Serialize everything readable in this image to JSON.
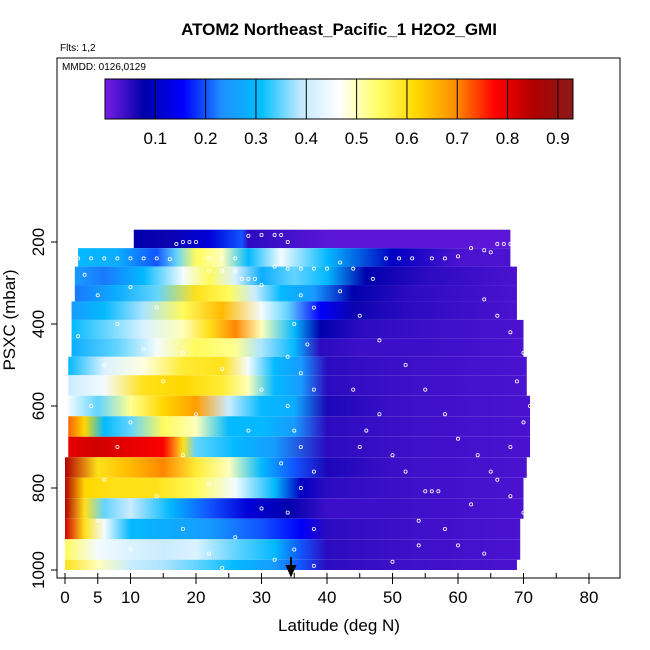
{
  "chart_data": {
    "type": "heatmap",
    "title": "ATOM2 Northeast_Pacific_1 H2O2_GMI",
    "flights_note": "Flts: 1,2",
    "date_note": "MMDD: 0126,0129",
    "xlabel": "Latitude (deg N)",
    "ylabel": "PSXC (mbar)",
    "xlim": [
      0,
      85
    ],
    "ylim": [
      1000,
      100
    ],
    "x_ticks": [
      0,
      5,
      10,
      20,
      30,
      40,
      50,
      60,
      70,
      80
    ],
    "y_ticks": [
      200,
      400,
      600,
      800,
      1000
    ],
    "y_tick_labels": [
      "200",
      "400",
      "600",
      "800",
      "1000"
    ],
    "colorbar": {
      "range": [
        0,
        0.93
      ],
      "ticks": [
        0.1,
        0.2,
        0.3,
        0.4,
        0.5,
        0.6,
        0.7,
        0.8,
        0.9
      ],
      "colors": [
        "#7a1ee6",
        "#0000aa",
        "#0000ff",
        "#1e90ff",
        "#00bfff",
        "#c0e8ff",
        "#ffffff",
        "#ffff66",
        "#ffd700",
        "#ff8c00",
        "#ff0000",
        "#b00000",
        "#8b1a1a"
      ]
    },
    "marker_latitude": 34.5,
    "bands": [
      {
        "p_top": 170,
        "p_bot": 215,
        "lat_min": 10.5,
        "lat_max": 68.0,
        "lats": [
          10.5,
          16,
          22,
          27,
          28,
          40,
          50,
          68
        ],
        "values": [
          0.08,
          0.07,
          0.12,
          0.2,
          0.05,
          0.02,
          0.02,
          0.02
        ]
      },
      {
        "p_top": 215,
        "p_bot": 260,
        "lat_min": 2.0,
        "lat_max": 68.0,
        "lats": [
          2,
          8,
          14,
          17,
          20,
          24,
          28,
          33,
          40,
          50,
          60,
          68
        ],
        "values": [
          0.3,
          0.28,
          0.2,
          0.35,
          0.55,
          0.5,
          0.3,
          0.45,
          0.3,
          0.1,
          0.03,
          0.03
        ]
      },
      {
        "p_top": 260,
        "p_bot": 305,
        "lat_min": 1.5,
        "lat_max": 69.0,
        "lats": [
          1.5,
          6,
          12,
          18,
          22,
          26,
          30,
          35,
          40,
          46,
          55,
          69
        ],
        "values": [
          0.25,
          0.22,
          0.3,
          0.45,
          0.55,
          0.42,
          0.28,
          0.35,
          0.3,
          0.08,
          0.05,
          0.03
        ]
      },
      {
        "p_top": 305,
        "p_bot": 345,
        "lat_min": 1.5,
        "lat_max": 69.0,
        "lats": [
          1.5,
          8,
          14,
          20,
          25,
          29,
          33,
          38,
          44,
          52,
          69
        ],
        "values": [
          0.22,
          0.28,
          0.35,
          0.6,
          0.55,
          0.4,
          0.3,
          0.25,
          0.08,
          0.05,
          0.03
        ]
      },
      {
        "p_top": 345,
        "p_bot": 390,
        "lat_min": 1.0,
        "lat_max": 69.0,
        "lats": [
          1,
          6,
          12,
          18,
          24,
          30,
          34,
          39,
          44,
          52,
          69
        ],
        "values": [
          0.25,
          0.3,
          0.38,
          0.55,
          0.65,
          0.45,
          0.35,
          0.15,
          0.07,
          0.05,
          0.03
        ]
      },
      {
        "p_top": 390,
        "p_bot": 435,
        "lat_min": 1.0,
        "lat_max": 70.0,
        "lats": [
          1,
          6,
          12,
          18,
          22,
          26,
          30,
          35,
          39,
          45,
          55,
          70
        ],
        "values": [
          0.3,
          0.35,
          0.42,
          0.5,
          0.6,
          0.7,
          0.5,
          0.3,
          0.08,
          0.05,
          0.04,
          0.03
        ]
      },
      {
        "p_top": 435,
        "p_bot": 480,
        "lat_min": 1.0,
        "lat_max": 70.0,
        "lats": [
          1,
          8,
          14,
          20,
          26,
          30,
          35,
          39,
          45,
          55,
          70
        ],
        "values": [
          0.28,
          0.35,
          0.45,
          0.55,
          0.52,
          0.38,
          0.3,
          0.05,
          0.04,
          0.04,
          0.03
        ]
      },
      {
        "p_top": 480,
        "p_bot": 525,
        "lat_min": 0.5,
        "lat_max": 70.5,
        "lats": [
          0.5,
          6,
          12,
          18,
          24,
          28,
          32,
          36,
          40,
          50,
          70.5
        ],
        "values": [
          0.3,
          0.42,
          0.48,
          0.58,
          0.6,
          0.45,
          0.3,
          0.25,
          0.05,
          0.04,
          0.03
        ]
      },
      {
        "p_top": 525,
        "p_bot": 575,
        "lat_min": 0.5,
        "lat_max": 70.5,
        "lats": [
          0.5,
          6,
          12,
          18,
          24,
          28,
          32,
          36,
          40,
          50,
          70.5
        ],
        "values": [
          0.4,
          0.45,
          0.6,
          0.62,
          0.58,
          0.5,
          0.3,
          0.25,
          0.05,
          0.04,
          0.03
        ]
      },
      {
        "p_top": 575,
        "p_bot": 625,
        "lat_min": 0.5,
        "lat_max": 71.0,
        "lats": [
          0.5,
          5,
          10,
          15,
          20,
          25,
          30,
          35,
          40,
          50,
          71
        ],
        "values": [
          0.45,
          0.35,
          0.52,
          0.62,
          0.68,
          0.4,
          0.3,
          0.28,
          0.06,
          0.04,
          0.03
        ]
      },
      {
        "p_top": 625,
        "p_bot": 675,
        "lat_min": 0.5,
        "lat_max": 71.0,
        "lats": [
          0.5,
          3,
          6,
          10,
          15,
          20,
          25,
          30,
          35,
          40,
          50,
          71
        ],
        "values": [
          0.72,
          0.62,
          0.3,
          0.35,
          0.55,
          0.5,
          0.3,
          0.3,
          0.25,
          0.05,
          0.04,
          0.03
        ]
      },
      {
        "p_top": 675,
        "p_bot": 725,
        "lat_min": 0.5,
        "lat_max": 71.0,
        "lats": [
          0.5,
          5,
          10,
          15,
          18,
          20,
          26,
          32,
          40,
          50,
          71
        ],
        "values": [
          0.8,
          0.82,
          0.8,
          0.78,
          0.6,
          0.35,
          0.3,
          0.25,
          0.05,
          0.04,
          0.03
        ]
      },
      {
        "p_top": 725,
        "p_bot": 775,
        "lat_min": 0.0,
        "lat_max": 70.5,
        "lats": [
          0,
          5,
          10,
          15,
          20,
          25,
          30,
          35,
          40,
          50,
          70.5
        ],
        "values": [
          0.85,
          0.6,
          0.65,
          0.7,
          0.58,
          0.5,
          0.3,
          0.2,
          0.06,
          0.04,
          0.03
        ]
      },
      {
        "p_top": 775,
        "p_bot": 825,
        "lat_min": 0.0,
        "lat_max": 70.0,
        "lats": [
          0,
          3,
          8,
          14,
          20,
          26,
          32,
          36,
          40,
          50,
          70
        ],
        "values": [
          0.85,
          0.62,
          0.6,
          0.6,
          0.55,
          0.45,
          0.3,
          0.1,
          0.05,
          0.04,
          0.03
        ]
      },
      {
        "p_top": 825,
        "p_bot": 875,
        "lat_min": 0.0,
        "lat_max": 70.0,
        "lats": [
          0,
          3,
          6,
          10,
          16,
          22,
          28,
          34,
          40,
          50,
          70
        ],
        "values": [
          0.85,
          0.6,
          0.35,
          0.4,
          0.3,
          0.2,
          0.12,
          0.08,
          0.04,
          0.04,
          0.03
        ]
      },
      {
        "p_top": 875,
        "p_bot": 925,
        "lat_min": 0.0,
        "lat_max": 69.5,
        "lats": [
          0,
          3,
          6,
          10,
          15,
          22,
          30,
          36,
          40,
          50,
          69.5
        ],
        "values": [
          0.82,
          0.6,
          0.45,
          0.3,
          0.28,
          0.25,
          0.2,
          0.15,
          0.05,
          0.04,
          0.03
        ]
      },
      {
        "p_top": 925,
        "p_bot": 975,
        "lat_min": 0.0,
        "lat_max": 69.5,
        "lats": [
          0,
          5,
          10,
          15,
          20,
          26,
          32,
          36,
          40,
          50,
          69.5
        ],
        "values": [
          0.55,
          0.45,
          0.42,
          0.4,
          0.42,
          0.35,
          0.3,
          0.2,
          0.05,
          0.04,
          0.03
        ]
      },
      {
        "p_top": 975,
        "p_bot": 1000,
        "lat_min": 0.0,
        "lat_max": 69.0,
        "lats": [
          0,
          5,
          10,
          15,
          20,
          26,
          32,
          36,
          40,
          50,
          69
        ],
        "values": [
          0.6,
          0.5,
          0.4,
          0.38,
          0.35,
          0.3,
          0.25,
          0.2,
          0.05,
          0.04,
          0.03
        ]
      }
    ],
    "track_points": [
      [
        2,
        240
      ],
      [
        4,
        240
      ],
      [
        6,
        240
      ],
      [
        8,
        240
      ],
      [
        10,
        240
      ],
      [
        12,
        240
      ],
      [
        14,
        240
      ],
      [
        16,
        242
      ],
      [
        17,
        205
      ],
      [
        18,
        200
      ],
      [
        19,
        200
      ],
      [
        20,
        200
      ],
      [
        22,
        240
      ],
      [
        24,
        240
      ],
      [
        26,
        240
      ],
      [
        28,
        185
      ],
      [
        30,
        183
      ],
      [
        32,
        183
      ],
      [
        33,
        183
      ],
      [
        34,
        200
      ],
      [
        22,
        270
      ],
      [
        24,
        270
      ],
      [
        26,
        270
      ],
      [
        27,
        290
      ],
      [
        28,
        290
      ],
      [
        29,
        290
      ],
      [
        30,
        305
      ],
      [
        32,
        260
      ],
      [
        34,
        265
      ],
      [
        36,
        265
      ],
      [
        38,
        265
      ],
      [
        40,
        265
      ],
      [
        42,
        250
      ],
      [
        44,
        265
      ],
      [
        47,
        290
      ],
      [
        49,
        240
      ],
      [
        51,
        240
      ],
      [
        53,
        240
      ],
      [
        56,
        240
      ],
      [
        58,
        240
      ],
      [
        60,
        235
      ],
      [
        62,
        215
      ],
      [
        64,
        220
      ],
      [
        65,
        225
      ],
      [
        66,
        205
      ],
      [
        67,
        205
      ],
      [
        68,
        205
      ],
      [
        69,
        205
      ],
      [
        3,
        280
      ],
      [
        10,
        310
      ],
      [
        5,
        330
      ],
      [
        14,
        360
      ],
      [
        8,
        400
      ],
      [
        2,
        430
      ],
      [
        12,
        460
      ],
      [
        18,
        470
      ],
      [
        6,
        500
      ],
      [
        24,
        510
      ],
      [
        15,
        540
      ],
      [
        30,
        560
      ],
      [
        4,
        600
      ],
      [
        20,
        620
      ],
      [
        10,
        640
      ],
      [
        28,
        660
      ],
      [
        8,
        700
      ],
      [
        18,
        720
      ],
      [
        33,
        740
      ],
      [
        6,
        780
      ],
      [
        22,
        790
      ],
      [
        14,
        820
      ],
      [
        30,
        850
      ],
      [
        5,
        880
      ],
      [
        18,
        900
      ],
      [
        26,
        920
      ],
      [
        10,
        950
      ],
      [
        22,
        960
      ],
      [
        32,
        975
      ],
      [
        38,
        990
      ],
      [
        24,
        995
      ],
      [
        36,
        330
      ],
      [
        38,
        360
      ],
      [
        35,
        400
      ],
      [
        37,
        450
      ],
      [
        34,
        480
      ],
      [
        36,
        520
      ],
      [
        38,
        560
      ],
      [
        34,
        600
      ],
      [
        35,
        660
      ],
      [
        36,
        700
      ],
      [
        38,
        760
      ],
      [
        36,
        800
      ],
      [
        34,
        860
      ],
      [
        38,
        900
      ],
      [
        35,
        950
      ],
      [
        42,
        320
      ],
      [
        45,
        380
      ],
      [
        48,
        440
      ],
      [
        52,
        500
      ],
      [
        55,
        560
      ],
      [
        58,
        620
      ],
      [
        60,
        680
      ],
      [
        63,
        720
      ],
      [
        66,
        780
      ],
      [
        68,
        820
      ],
      [
        70,
        860
      ],
      [
        71,
        900
      ],
      [
        70,
        940
      ],
      [
        70,
        980
      ],
      [
        44,
        560
      ],
      [
        46,
        660
      ],
      [
        50,
        720
      ],
      [
        52,
        760
      ],
      [
        55,
        808
      ],
      [
        56,
        808
      ],
      [
        57,
        808
      ],
      [
        54,
        880
      ],
      [
        60,
        940
      ],
      [
        64,
        960
      ],
      [
        50,
        980
      ],
      [
        45,
        700
      ],
      [
        48,
        620
      ],
      [
        64,
        340
      ],
      [
        66,
        380
      ],
      [
        68,
        420
      ],
      [
        70,
        470
      ],
      [
        69,
        540
      ],
      [
        71,
        600
      ],
      [
        70,
        640
      ],
      [
        68,
        700
      ],
      [
        65,
        760
      ],
      [
        62,
        840
      ],
      [
        58,
        900
      ],
      [
        54,
        940
      ]
    ]
  }
}
